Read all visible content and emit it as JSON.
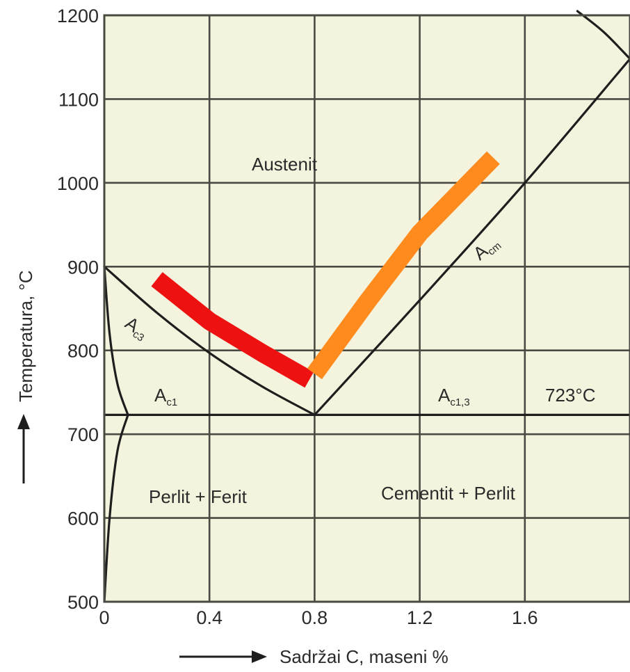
{
  "chart_data": {
    "type": "line",
    "title": "",
    "xlabel": "Sadržai C, maseni %",
    "ylabel": "Temperatura, °C",
    "xlim": [
      0,
      2.0
    ],
    "ylim": [
      500,
      1200
    ],
    "x_ticks": [
      "0",
      "0.4",
      "0.8",
      "1.2",
      "1.6"
    ],
    "y_ticks": [
      "500",
      "600",
      "700",
      "800",
      "900",
      "1000",
      "1100",
      "1200"
    ],
    "grid": true,
    "background_color": "#f4f4de",
    "grid_color": "#4a4a42",
    "curve_color": "#1e1e1e",
    "eutectoid_temp_label": "723°C",
    "series": [
      {
        "name": "A3",
        "x": [
          0,
          0.2,
          0.4,
          0.6,
          0.8
        ],
        "y": [
          900,
          845,
          797,
          757,
          723
        ]
      },
      {
        "name": "Acm",
        "x": [
          0.8,
          1.2,
          1.6,
          2.0
        ],
        "y": [
          723,
          860,
          1000,
          1148
        ]
      },
      {
        "x": [
          0.0,
          2.0
        ],
        "y": [
          723,
          723
        ]
      },
      {
        "x": [
          0.0,
          0.02,
          0.05,
          0.09
        ],
        "y": [
          900,
          820,
          760,
          723
        ]
      },
      {
        "x": [
          0.09,
          0.05,
          0.02,
          0.0
        ],
        "y": [
          723,
          680,
          600,
          500
        ]
      },
      {
        "x": [
          1.8,
          1.9,
          2.0
        ],
        "y": [
          1205,
          1180,
          1148
        ]
      },
      {
        "x": [
          2.0,
          2.06
        ],
        "y": [
          1148,
          1138
        ]
      }
    ],
    "bands": [
      {
        "color": "#ee1111",
        "x": [
          0.2,
          0.4,
          0.6,
          0.78
        ],
        "y": [
          885,
          835,
          797,
          765
        ]
      },
      {
        "color": "#ff8a1e",
        "x": [
          0.8,
          1.0,
          1.2,
          1.48
        ],
        "y": [
          772,
          858,
          940,
          1030
        ]
      }
    ],
    "region_labels": {
      "austenite": "Austenit",
      "a3": "A",
      "a3_sub": "c3",
      "acm": "A",
      "acm_sub": "cm",
      "ac1": "A",
      "ac1_sub": "c1",
      "ac13": "A",
      "ac13_sub": "c1,3",
      "pearlite_ferrite": "Perlit + Ferit",
      "cementite_pearlite": "Cementit + Perlit"
    }
  }
}
